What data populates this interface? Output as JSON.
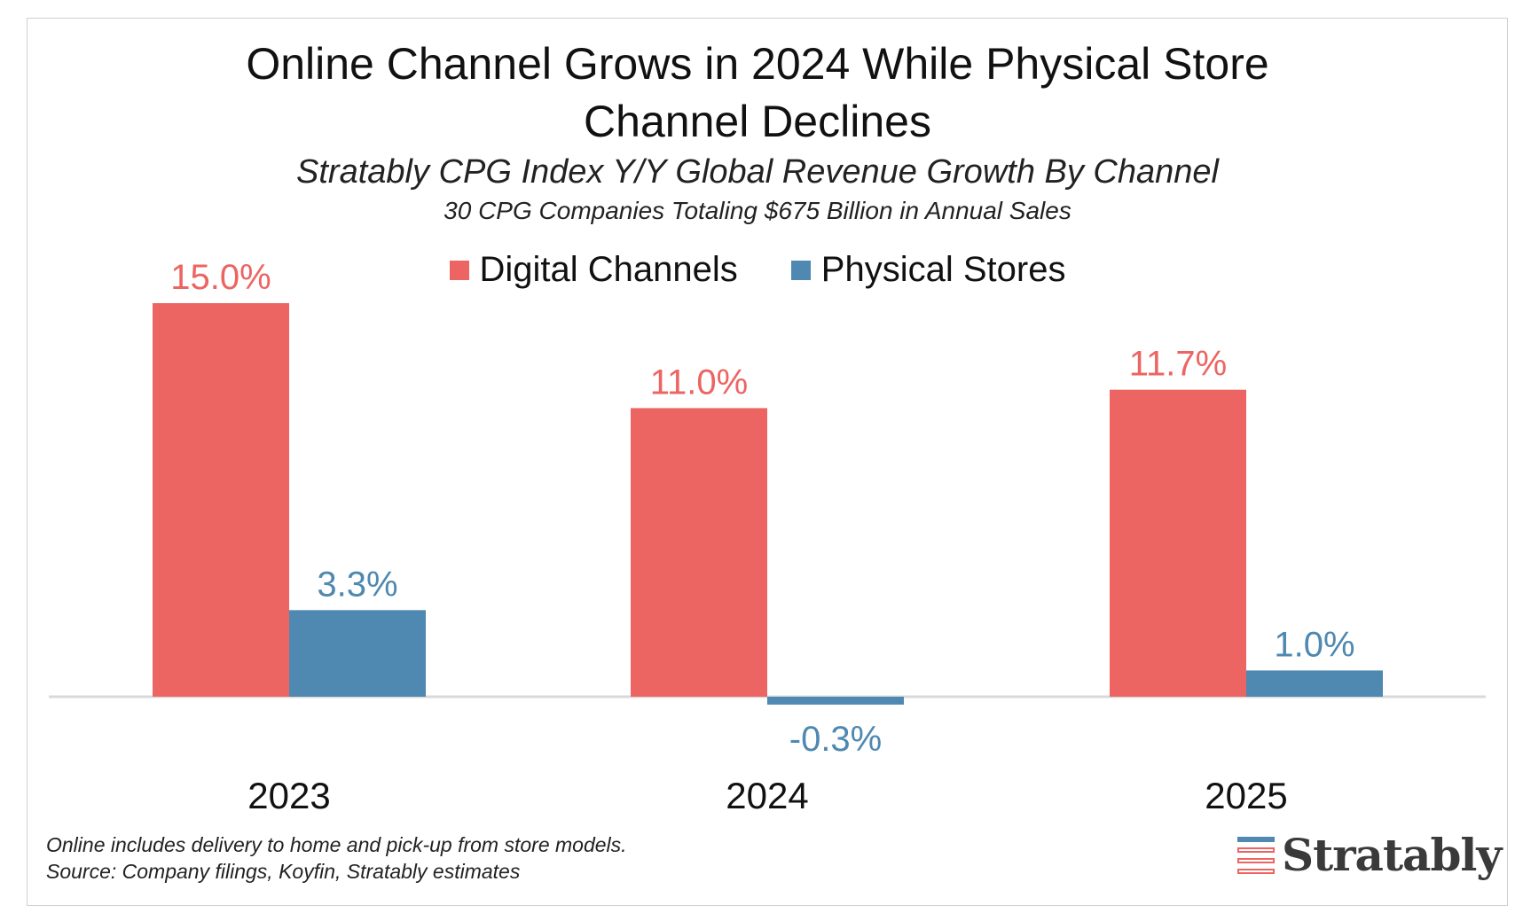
{
  "title_line1": "Online Channel Grows in 2024 While Physical Store",
  "title_line2": "Channel Declines",
  "subtitle": "Stratably CPG Index Y/Y Global Revenue Growth By Channel",
  "sub_subtitle": "30 CPG Companies Totaling $675 Billion in Annual Sales",
  "footnote_line1": "Online includes delivery to home and pick-up from store models.",
  "footnote_line2": "Source: Company filings, Koyfin, Stratably estimates",
  "logo_text": "Stratably",
  "colors": {
    "digital": "#ec6562",
    "physical": "#4f88b0",
    "axis": "#d9d9d9"
  },
  "chart_data": {
    "type": "bar",
    "categories": [
      "2023",
      "2024",
      "2025"
    ],
    "series": [
      {
        "name": "Digital Channels",
        "values": [
          15.0,
          11.0,
          11.7
        ],
        "labels": [
          "15.0%",
          "11.0%",
          "11.7%"
        ]
      },
      {
        "name": "Physical Stores",
        "values": [
          3.3,
          -0.3,
          1.0
        ],
        "labels": [
          "3.3%",
          "-0.3%",
          "1.0%"
        ]
      }
    ],
    "title": "Online Channel Grows in 2024 While Physical Store Channel Declines",
    "xlabel": "",
    "ylabel": "",
    "ylim": [
      -0.3,
      15.0
    ],
    "grid": false,
    "legend": "top-center"
  }
}
